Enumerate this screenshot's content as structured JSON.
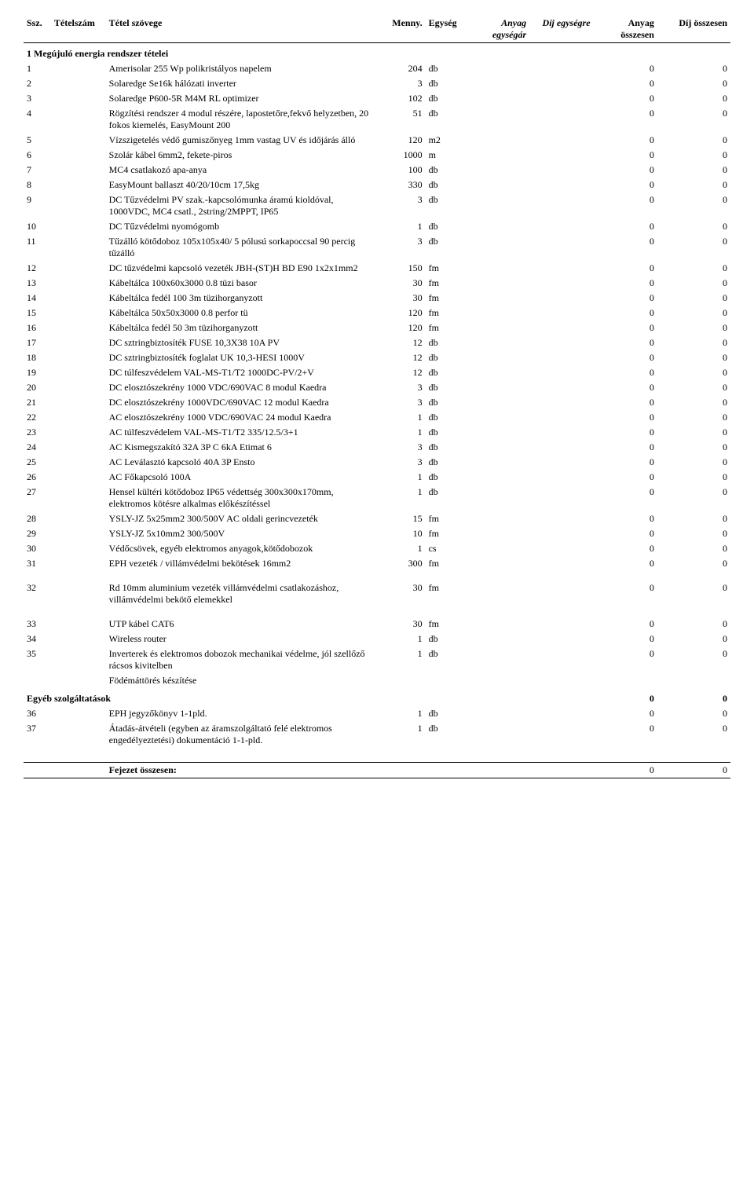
{
  "headers": {
    "ssz": "Ssz.",
    "tetelszam": "Tételszám",
    "tetel_szovege": "Tétel szövege",
    "menny": "Menny.",
    "egyseg": "Egység",
    "anyag_egysegar": "Anyag egységár",
    "dij_egysegre": "Díj egységre",
    "anyag_osszesen": "Anyag összesen",
    "dij_osszesen": "Díj összesen"
  },
  "section1": {
    "title": "1 Megújuló energia rendszer tételei",
    "rows": [
      {
        "n": "1",
        "text": "Amerisolar 255 Wp polikristályos napelem",
        "qty": "204",
        "unit": "db",
        "at": "0",
        "dt": "0"
      },
      {
        "n": "2",
        "text": "Solaredge Se16k hálózati inverter",
        "qty": "3",
        "unit": "db",
        "at": "0",
        "dt": "0"
      },
      {
        "n": "3",
        "text": "Solaredge P600-5R M4M RL optimizer",
        "qty": "102",
        "unit": "db",
        "at": "0",
        "dt": "0"
      },
      {
        "n": "4",
        "text": "Rögzítési rendszer 4 modul részére, lapostetőre,fekvő helyzetben, 20 fokos kiemelés, EasyMount 200",
        "qty": "51",
        "unit": "db",
        "at": "0",
        "dt": "0"
      },
      {
        "n": "5",
        "text": "Vízszigetelés védő gumiszőnyeg 1mm vastag UV és időjárás álló",
        "qty": "120",
        "unit": "m2",
        "at": "0",
        "dt": "0"
      },
      {
        "n": "6",
        "text": "Szolár kábel  6mm2, fekete-piros",
        "qty": "1000",
        "unit": "m",
        "at": "0",
        "dt": "0"
      },
      {
        "n": "7",
        "text": "MC4 csatlakozó apa-anya",
        "qty": "100",
        "unit": "db",
        "at": "0",
        "dt": "0"
      },
      {
        "n": "8",
        "text": "EasyMount ballaszt 40/20/10cm 17,5kg",
        "qty": "330",
        "unit": "db",
        "at": "0",
        "dt": "0"
      },
      {
        "n": "9",
        "text": "DC Tűzvédelmi PV szak.-kapcsolómunka áramú kioldóval, 1000VDC, MC4 csatl., 2string/2MPPT, IP65",
        "qty": "3",
        "unit": "db",
        "at": "0",
        "dt": "0"
      },
      {
        "n": "10",
        "text": "DC Tűzvédelmi nyomógomb",
        "qty": "1",
        "unit": "db",
        "at": "0",
        "dt": "0"
      },
      {
        "n": "11",
        "text": "Tűzálló kötődoboz 105x105x40/ 5 pólusú sorkapoccsal 90 percig tűzálló",
        "qty": "3",
        "unit": "db",
        "at": "0",
        "dt": "0"
      },
      {
        "n": "12",
        "text": "DC tűzvédelmi kapcsoló vezeték JBH-(ST)H BD E90 1x2x1mm2",
        "qty": "150",
        "unit": "fm",
        "at": "0",
        "dt": "0"
      },
      {
        "n": "13",
        "text": "Kábeltálca 100x60x3000 0.8 tüzi basor",
        "qty": "30",
        "unit": "fm",
        "at": "0",
        "dt": "0"
      },
      {
        "n": "14",
        "text": "Kábeltálca fedél 100 3m tüzihorganyzott",
        "qty": "30",
        "unit": "fm",
        "at": "0",
        "dt": "0"
      },
      {
        "n": "15",
        "text": "Kábeltálca 50x50x3000 0.8 perfor tü",
        "qty": "120",
        "unit": "fm",
        "at": "0",
        "dt": "0"
      },
      {
        "n": "16",
        "text": "Kábeltálca fedél 50 3m tüzihorganyzott",
        "qty": "120",
        "unit": "fm",
        "at": "0",
        "dt": "0"
      },
      {
        "n": "17",
        "text": "DC sztringbiztosíték FUSE 10,3X38 10A PV",
        "qty": "12",
        "unit": "db",
        "at": "0",
        "dt": "0"
      },
      {
        "n": "18",
        "text": "DC sztringbiztosíték foglalat UK 10,3-HESI 1000V",
        "qty": "12",
        "unit": "db",
        "at": "0",
        "dt": "0"
      },
      {
        "n": "19",
        "text": "DC túlfeszvédelem VAL-MS-T1/T2 1000DC-PV/2+V",
        "qty": "12",
        "unit": "db",
        "at": "0",
        "dt": "0"
      },
      {
        "n": "20",
        "text": "DC elosztószekrény 1000 VDC/690VAC 8 modul Kaedra",
        "qty": "3",
        "unit": "db",
        "at": "0",
        "dt": "0"
      },
      {
        "n": "21",
        "text": "DC elosztószekrény 1000VDC/690VAC 12 modul Kaedra",
        "qty": "3",
        "unit": "db",
        "at": "0",
        "dt": "0"
      },
      {
        "n": "22",
        "text": "AC elosztószekrény 1000 VDC/690VAC 24 modul Kaedra",
        "qty": "1",
        "unit": "db",
        "at": "0",
        "dt": "0"
      },
      {
        "n": "23",
        "text": "AC túlfeszvédelem VAL-MS-T1/T2 335/12.5/3+1",
        "qty": "1",
        "unit": "db",
        "at": "0",
        "dt": "0"
      },
      {
        "n": "24",
        "text": "AC Kismegszakító 32A 3P C 6kA Etimat 6",
        "qty": "3",
        "unit": "db",
        "at": "0",
        "dt": "0"
      },
      {
        "n": "25",
        "text": "AC Leválasztó kapcsoló 40A 3P Ensto",
        "qty": "3",
        "unit": "db",
        "at": "0",
        "dt": "0"
      },
      {
        "n": "26",
        "text": "AC Főkapcsoló 100A",
        "qty": "1",
        "unit": "db",
        "at": "0",
        "dt": "0"
      },
      {
        "n": "27",
        "text": "Hensel kültéri kötődoboz IP65 védettség 300x300x170mm, elektromos kötésre alkalmas előkészítéssel",
        "qty": "1",
        "unit": "db",
        "at": "0",
        "dt": "0"
      },
      {
        "n": "28",
        "text": "YSLY-JZ 5x25mm2 300/500V AC oldali gerincvezeték",
        "qty": "15",
        "unit": "fm",
        "at": "0",
        "dt": "0"
      },
      {
        "n": "29",
        "text": "YSLY-JZ 5x10mm2 300/500V",
        "qty": "10",
        "unit": "fm",
        "at": "0",
        "dt": "0"
      },
      {
        "n": "30",
        "text": "Védőcsövek, egyéb elektromos anyagok,kötődobozok",
        "qty": "1",
        "unit": "cs",
        "at": "0",
        "dt": "0"
      },
      {
        "n": "31",
        "text": "EPH vezeték / villámvédelmi bekötések 16mm2",
        "qty": "300",
        "unit": "fm",
        "at": "0",
        "dt": "0"
      },
      {
        "n": "32",
        "text": "Rd 10mm aluminium vezeték villámvédelmi csatlakozáshoz, villámvédelmi bekötő elemekkel",
        "qty": "30",
        "unit": "fm",
        "at": "0",
        "dt": "0"
      },
      {
        "n": "33",
        "text": "UTP kábel CAT6",
        "qty": "30",
        "unit": "fm",
        "at": "0",
        "dt": "0"
      },
      {
        "n": "34",
        "text": "Wireless router",
        "qty": "1",
        "unit": "db",
        "at": "0",
        "dt": "0"
      },
      {
        "n": "35",
        "text": "Inverterek és elektromos dobozok mechanikai védelme, jól szellőző rácsos kivitelben",
        "qty": "1",
        "unit": "db",
        "at": "0",
        "dt": "0"
      }
    ],
    "extra_line": "Födémáttörés készítése"
  },
  "section2": {
    "title": "Egyéb szolgáltatások",
    "title_at": "0",
    "title_dt": "0",
    "rows": [
      {
        "n": "36",
        "text": "EPH jegyzőkönyv 1-1pld.",
        "qty": "1",
        "unit": "db",
        "at": "0",
        "dt": "0"
      },
      {
        "n": "37",
        "text": "Átadás-átvételi (egyben az áramszolgáltató felé elektromos engedélyeztetési) dokumentáció 1-1-pld.",
        "qty": "1",
        "unit": "db",
        "at": "0",
        "dt": "0"
      }
    ]
  },
  "footer": {
    "label": "Fejezet összesen:",
    "at": "0",
    "dt": "0"
  }
}
